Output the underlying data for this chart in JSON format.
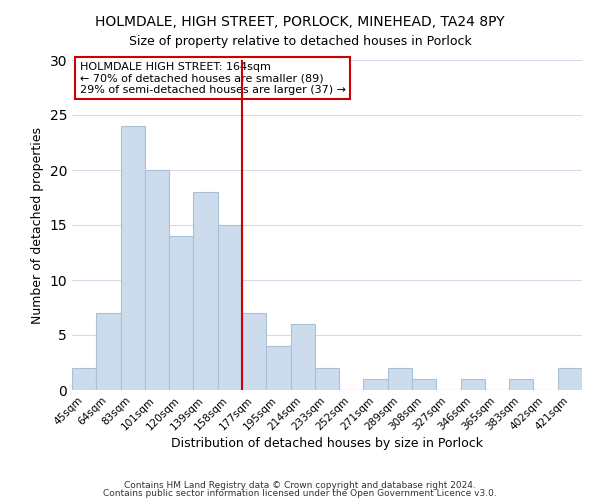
{
  "title": "HOLMDALE, HIGH STREET, PORLOCK, MINEHEAD, TA24 8PY",
  "subtitle": "Size of property relative to detached houses in Porlock",
  "xlabel": "Distribution of detached houses by size in Porlock",
  "ylabel": "Number of detached properties",
  "footer_line1": "Contains HM Land Registry data © Crown copyright and database right 2024.",
  "footer_line2": "Contains public sector information licensed under the Open Government Licence v3.0.",
  "bar_labels": [
    "45sqm",
    "64sqm",
    "83sqm",
    "101sqm",
    "120sqm",
    "139sqm",
    "158sqm",
    "177sqm",
    "195sqm",
    "214sqm",
    "233sqm",
    "252sqm",
    "271sqm",
    "289sqm",
    "308sqm",
    "327sqm",
    "346sqm",
    "365sqm",
    "383sqm",
    "402sqm",
    "421sqm"
  ],
  "bar_values": [
    2,
    7,
    24,
    20,
    14,
    18,
    15,
    7,
    4,
    6,
    2,
    0,
    1,
    2,
    1,
    0,
    1,
    0,
    1,
    0,
    2
  ],
  "bar_color": "#ccdcec",
  "bar_edge_color": "#a8c0d8",
  "vline_color": "#cc0000",
  "annotation_title": "HOLMDALE HIGH STREET: 164sqm",
  "annotation_line1": "← 70% of detached houses are smaller (89)",
  "annotation_line2": "29% of semi-detached houses are larger (37) →",
  "annotation_box_color": "#ffffff",
  "annotation_box_edge": "#cc0000",
  "ylim": [
    0,
    30
  ],
  "yticks": [
    0,
    5,
    10,
    15,
    20,
    25,
    30
  ],
  "background_color": "#ffffff",
  "grid_color": "#d0dce8",
  "title_fontsize": 10,
  "subtitle_fontsize": 9
}
